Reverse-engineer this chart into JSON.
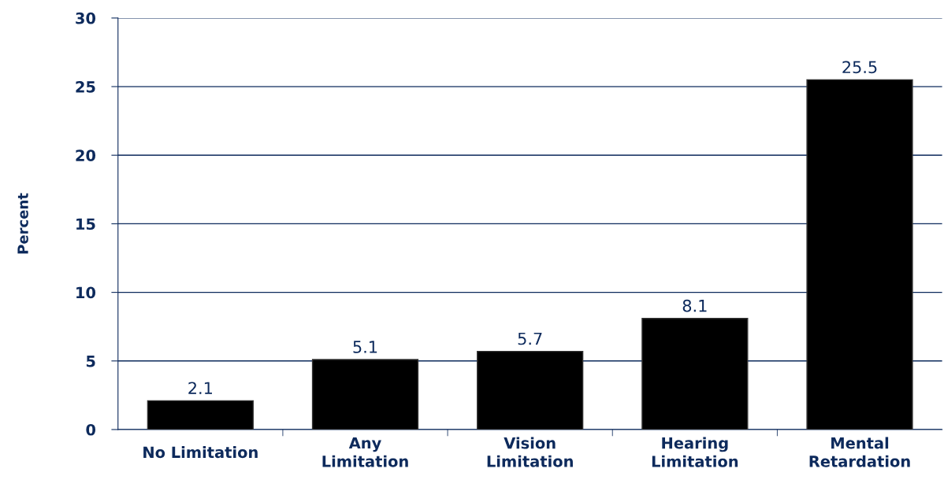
{
  "chart_data": {
    "type": "bar",
    "ylabel": "Percent",
    "categories": [
      "No Limitation",
      "Any\nLimitation",
      "Vision\nLimitation",
      "Hearing\nLimitation",
      "Mental\nRetardation"
    ],
    "values": [
      2.1,
      5.1,
      5.7,
      8.1,
      25.5
    ],
    "color": "#000000",
    "ylim": [
      0,
      30
    ],
    "yticks": [
      0,
      5,
      10,
      15,
      20,
      25,
      30
    ],
    "grid": "y",
    "data_labels": true
  }
}
